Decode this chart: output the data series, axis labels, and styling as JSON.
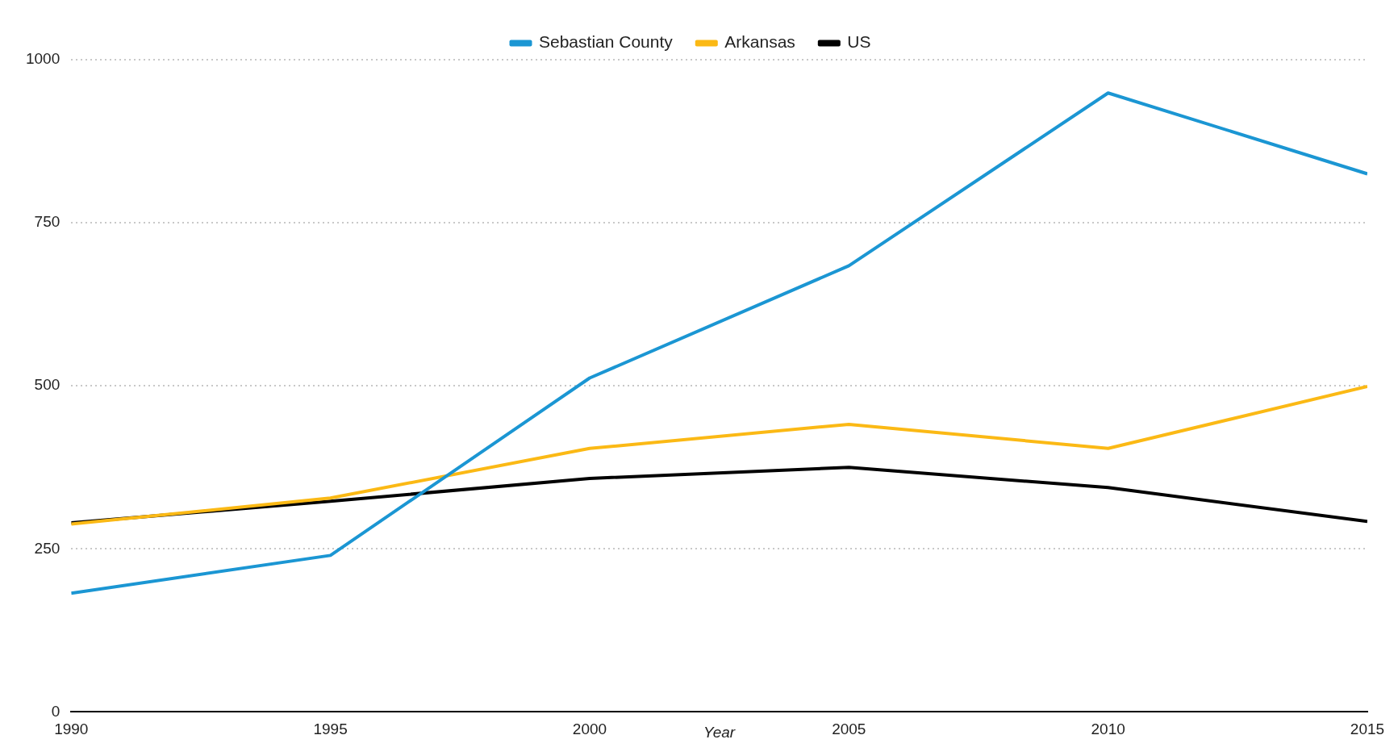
{
  "chart_data": {
    "type": "line",
    "xlabel": "Year",
    "x": [
      1990,
      1995,
      2000,
      2005,
      2010,
      2015
    ],
    "xlim": [
      1990,
      2015
    ],
    "xticks": [
      1990,
      1995,
      2000,
      2005,
      2010,
      2015
    ],
    "ylim": [
      0,
      1000
    ],
    "yticks": [
      0,
      250,
      500,
      750,
      1000
    ],
    "grid": "y",
    "legend": "top",
    "marker": "none",
    "line_style": "solid",
    "series": [
      {
        "name": "Sebastian County",
        "color": "#1b96d3",
        "values": [
          182,
          240,
          512,
          684,
          949,
          825
        ]
      },
      {
        "name": "Arkansas",
        "color": "#fbb915",
        "values": [
          288,
          328,
          404,
          441,
          404,
          499
        ]
      },
      {
        "name": "US",
        "color": "#000000",
        "values": [
          290,
          323,
          358,
          375,
          344,
          292
        ]
      }
    ]
  }
}
